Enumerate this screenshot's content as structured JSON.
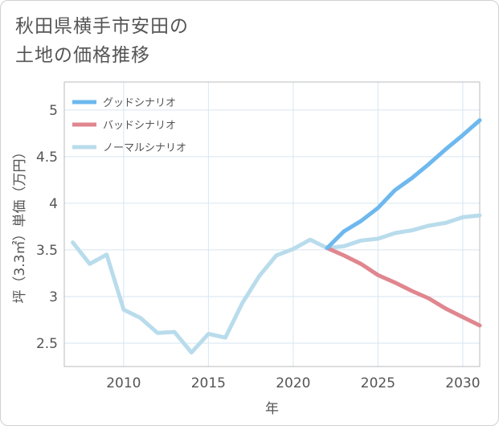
{
  "title_lines": [
    "秋田県横手市安田の",
    "土地の価格推移"
  ],
  "chart_data": {
    "type": "line",
    "title": "秋田県横手市安田の土地の価格推移",
    "xlabel": "年",
    "ylabel": "坪（3.3㎡）単価（万円）",
    "xlim": [
      2006.5,
      2031
    ],
    "ylim": [
      2.25,
      5.3
    ],
    "x_ticks": [
      2010,
      2015,
      2020,
      2025,
      2030
    ],
    "y_ticks": [
      2.5,
      3,
      3.5,
      4,
      4.5,
      5
    ],
    "x_tick_labels": [
      "2010",
      "2015",
      "2020",
      "2025",
      "2030"
    ],
    "y_tick_labels": [
      "2.5",
      "3",
      "3.5",
      "4",
      "4.5",
      "5"
    ],
    "legend_position": "top-left",
    "series": [
      {
        "name": "グッドシナリオ",
        "color": "#6db8ee",
        "x": [
          2022,
          2023,
          2024,
          2025,
          2026,
          2027,
          2028,
          2029,
          2030,
          2031
        ],
        "values": [
          3.52,
          3.7,
          3.81,
          3.95,
          4.14,
          4.27,
          4.42,
          4.58,
          4.73,
          4.89
        ]
      },
      {
        "name": "バッドシナリオ",
        "color": "#e0868f",
        "x": [
          2022,
          2023,
          2024,
          2025,
          2026,
          2027,
          2028,
          2029,
          2030,
          2031
        ],
        "values": [
          3.52,
          3.44,
          3.35,
          3.23,
          3.15,
          3.06,
          2.98,
          2.87,
          2.78,
          2.69
        ]
      },
      {
        "name": "ノーマルシナリオ",
        "color": "#b9dcec",
        "x": [
          2007,
          2008,
          2009,
          2010,
          2011,
          2012,
          2013,
          2014,
          2015,
          2016,
          2017,
          2018,
          2019,
          2020,
          2021,
          2022,
          2023,
          2024,
          2025,
          2026,
          2027,
          2028,
          2029,
          2030,
          2031
        ],
        "values": [
          3.58,
          3.35,
          3.45,
          2.86,
          2.77,
          2.61,
          2.62,
          2.4,
          2.6,
          2.56,
          2.93,
          3.22,
          3.44,
          3.51,
          3.61,
          3.52,
          3.54,
          3.6,
          3.62,
          3.68,
          3.71,
          3.76,
          3.79,
          3.85,
          3.87
        ]
      }
    ]
  }
}
